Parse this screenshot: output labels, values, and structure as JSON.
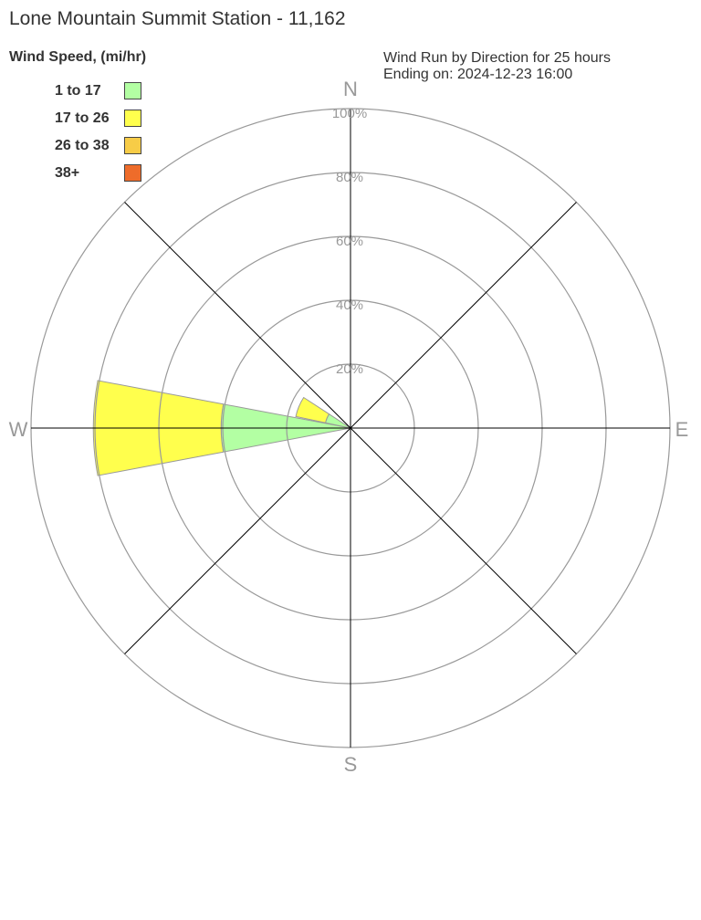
{
  "title": "Lone Mountain Summit Station - 11,162",
  "chart_data": {
    "type": "windrose",
    "title": "Wind Run by Direction for 25 hours",
    "subtitle": "Ending on: 2024-12-23 16:00",
    "legend_title": "Wind Speed, (mi/hr)",
    "bands": [
      {
        "name": "1 to 17",
        "color": "#b3ffa3"
      },
      {
        "name": "17 to 26",
        "color": "#ffff4d"
      },
      {
        "name": "26 to 38",
        "color": "#f7cc47"
      },
      {
        "name": "38+",
        "color": "#ee6c2a"
      }
    ],
    "radial_ticks": [
      "20%",
      "40%",
      "60%",
      "80%",
      "100%"
    ],
    "radial_max": 100,
    "compass_labels": {
      "N": "N",
      "E": "E",
      "S": "S",
      "W": "W"
    },
    "directions": [
      {
        "dir": "W",
        "bearing": 270,
        "cumulative_percent": [
          40.5,
          80.5,
          80.5,
          80.5
        ]
      },
      {
        "dir": "WNW",
        "bearing": 292.5,
        "cumulative_percent": [
          8,
          17.5,
          17.5,
          17.5
        ]
      }
    ]
  }
}
